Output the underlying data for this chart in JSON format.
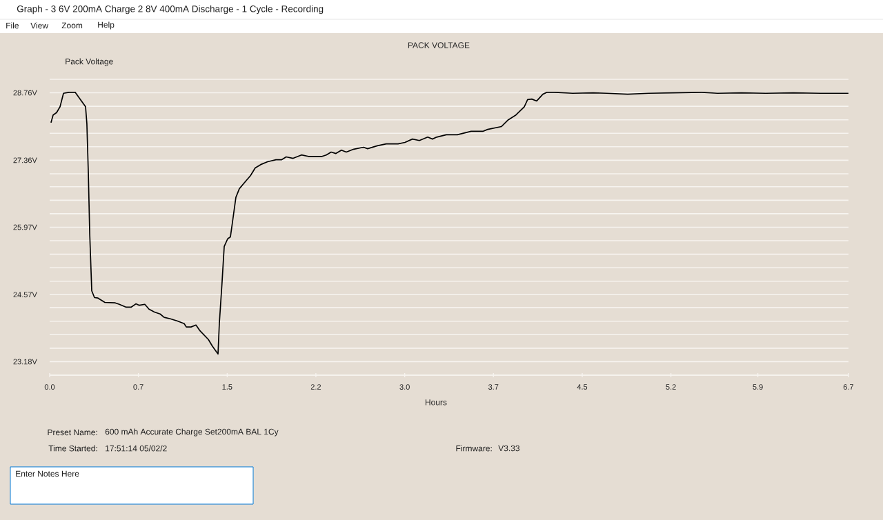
{
  "chart_data": {
    "type": "line",
    "title": "PACK VOLTAGE",
    "xlabel": "Hours",
    "ylabel": "Pack Voltage",
    "x": [
      0.012,
      0.029,
      0.058,
      0.087,
      0.116,
      0.162,
      0.214,
      0.249,
      0.301,
      0.312,
      0.324,
      0.336,
      0.353,
      0.376,
      0.405,
      0.463,
      0.55,
      0.584,
      0.642,
      0.683,
      0.723,
      0.752,
      0.798,
      0.833,
      0.879,
      0.926,
      0.96,
      1.012,
      1.076,
      1.128,
      1.146,
      1.186,
      1.227,
      1.261,
      1.331,
      1.365,
      1.412,
      1.423,
      1.446,
      1.464,
      1.493,
      1.516,
      1.533,
      1.562,
      1.591,
      1.649,
      1.684,
      1.724,
      1.77,
      1.828,
      1.898,
      1.944,
      1.984,
      2.042,
      2.112,
      2.17,
      2.285,
      2.32,
      2.361,
      2.401,
      2.447,
      2.488,
      2.551,
      2.632,
      2.667,
      2.748,
      2.823,
      2.922,
      2.98,
      3.043,
      3.101,
      3.171,
      3.211,
      3.246,
      3.327,
      3.419,
      3.535,
      3.633,
      3.674,
      3.79,
      3.847,
      3.911,
      3.981,
      4.009,
      4.044,
      4.085,
      4.137,
      4.172,
      4.235,
      4.386,
      4.559,
      4.675,
      4.848,
      5.022,
      5.224,
      5.467,
      5.601,
      5.803,
      6.006,
      6.237,
      6.468,
      6.7
    ],
    "series": [
      {
        "color": "#000000",
        "values": [
          28.15,
          28.3,
          28.35,
          28.47,
          28.75,
          28.77,
          28.77,
          28.65,
          28.47,
          28.12,
          27.12,
          25.83,
          24.65,
          24.51,
          24.5,
          24.41,
          24.4,
          24.37,
          24.31,
          24.31,
          24.38,
          24.35,
          24.37,
          24.27,
          24.21,
          24.17,
          24.1,
          24.07,
          24.02,
          23.97,
          23.9,
          23.9,
          23.94,
          23.82,
          23.64,
          23.5,
          23.34,
          23.97,
          24.83,
          25.57,
          25.73,
          25.77,
          26.07,
          26.59,
          26.77,
          26.94,
          27.04,
          27.2,
          27.27,
          27.33,
          27.37,
          27.37,
          27.43,
          27.4,
          27.47,
          27.44,
          27.44,
          27.47,
          27.53,
          27.5,
          27.57,
          27.53,
          27.59,
          27.63,
          27.6,
          27.66,
          27.7,
          27.7,
          27.73,
          27.8,
          27.77,
          27.84,
          27.8,
          27.84,
          27.89,
          27.89,
          27.96,
          27.96,
          28.0,
          28.06,
          28.2,
          28.3,
          28.47,
          28.62,
          28.63,
          28.59,
          28.73,
          28.77,
          28.77,
          28.75,
          28.76,
          28.75,
          28.73,
          28.75,
          28.76,
          28.77,
          28.75,
          28.76,
          28.75,
          28.76,
          28.75,
          28.75
        ]
      }
    ],
    "xlim": [
      0,
      6.7
    ],
    "xticks": [
      {
        "value": 0,
        "label": "0.0"
      },
      {
        "value": 0.744,
        "label": "0.7"
      },
      {
        "value": 1.489,
        "label": "1.5"
      },
      {
        "value": 2.233,
        "label": "2.2"
      },
      {
        "value": 2.978,
        "label": "3.0"
      },
      {
        "value": 3.722,
        "label": "3.7"
      },
      {
        "value": 4.467,
        "label": "4.5"
      },
      {
        "value": 5.211,
        "label": "5.2"
      },
      {
        "value": 5.94,
        "label": "5.9"
      },
      {
        "value": 6.7,
        "label": "6.7"
      }
    ],
    "ylim": [
      22.9,
      29.04
    ],
    "yticks": [
      {
        "value": 22.9,
        "label": null
      },
      {
        "value": 23.18,
        "label": "23.18V"
      },
      {
        "value": 23.46,
        "label": null
      },
      {
        "value": 23.74,
        "label": null
      },
      {
        "value": 24.02,
        "label": null
      },
      {
        "value": 24.3,
        "label": null
      },
      {
        "value": 24.57,
        "label": "24.57V"
      },
      {
        "value": 24.85,
        "label": null
      },
      {
        "value": 25.13,
        "label": null
      },
      {
        "value": 25.41,
        "label": null
      },
      {
        "value": 25.69,
        "label": null
      },
      {
        "value": 25.97,
        "label": "25.97V"
      },
      {
        "value": 26.25,
        "label": null
      },
      {
        "value": 26.53,
        "label": null
      },
      {
        "value": 26.81,
        "label": null
      },
      {
        "value": 27.08,
        "label": null
      },
      {
        "value": 27.36,
        "label": "27.36V"
      },
      {
        "value": 27.64,
        "label": null
      },
      {
        "value": 27.92,
        "label": null
      },
      {
        "value": 28.2,
        "label": null
      },
      {
        "value": 28.48,
        "label": null
      },
      {
        "value": 28.76,
        "label": "28.76V"
      },
      {
        "value": 29.04,
        "label": null
      }
    ],
    "grid": "y",
    "annotations": [
      "Graph - 3 6V 200mA Charge  2 8V 400mA Discharge - 1 Cycle - Recording",
      "File",
      "View",
      "Zoom",
      "Help",
      "Preset Name:",
      "600 mAh  Accurate Charge  Set200mA BAL 1Cy",
      "Time Started:",
      "17:51:14  05/02/2",
      "Firmware:",
      "V3.33",
      "Enter Notes Here"
    ]
  }
}
